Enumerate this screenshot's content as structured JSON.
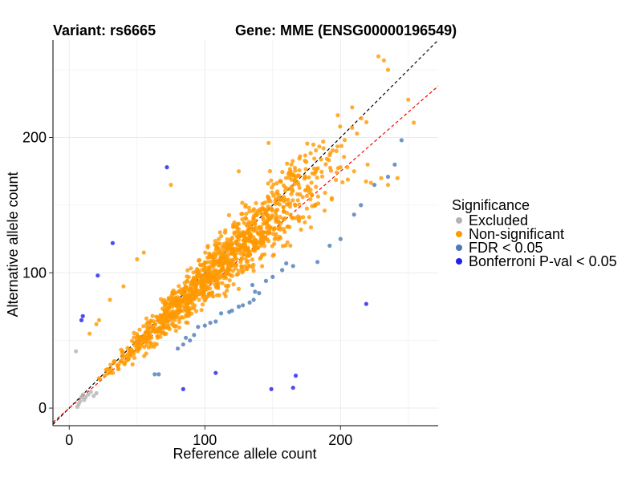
{
  "chart_data": {
    "type": "scatter",
    "title_left": "Variant: rs6665",
    "title_right": "Gene: MME (ENSG00000196549)",
    "xlabel": "Reference allele count",
    "ylabel": "Alternative allele count",
    "xlim": [
      -12,
      272
    ],
    "ylim": [
      -13,
      272
    ],
    "xticks": [
      0,
      100,
      200
    ],
    "yticks": [
      0,
      100,
      200
    ],
    "grid": true,
    "legend": {
      "title": "Significance",
      "position": "right",
      "entries": [
        {
          "label": "Excluded",
          "color": "#b3b3b3"
        },
        {
          "label": "Non-significant",
          "color": "#ff9900"
        },
        {
          "label": "FDR < 0.05",
          "color": "#4a7ab8"
        },
        {
          "label": "Bonferroni P-val < 0.05",
          "color": "#1f1ff0"
        }
      ]
    },
    "reference_lines": [
      {
        "name": "identity",
        "slope": 1.0,
        "intercept": 0,
        "color": "#000000",
        "style": "dashed"
      },
      {
        "name": "fit",
        "slope": 0.875,
        "intercept": 0,
        "color": "#ff0000",
        "style": "dashed"
      }
    ],
    "series": [
      {
        "name": "Excluded",
        "color": "#b3b3b3",
        "points": [
          [
            5,
            42
          ],
          [
            7,
            3
          ],
          [
            6,
            1
          ],
          [
            8,
            5
          ],
          [
            9,
            8
          ],
          [
            10,
            10
          ],
          [
            12,
            8
          ],
          [
            14,
            10
          ],
          [
            18,
            9
          ],
          [
            20,
            11
          ],
          [
            16,
            12
          ],
          [
            11,
            6
          ]
        ]
      },
      {
        "name": "FDR < 0.05",
        "color": "#4a7ab8",
        "points": [
          [
            63,
            25
          ],
          [
            66,
            25
          ],
          [
            80,
            44
          ],
          [
            84,
            47
          ],
          [
            86,
            52
          ],
          [
            89,
            50
          ],
          [
            92,
            54
          ],
          [
            95,
            60
          ],
          [
            100,
            61
          ],
          [
            104,
            63
          ],
          [
            108,
            64
          ],
          [
            112,
            70
          ],
          [
            118,
            71
          ],
          [
            120,
            72
          ],
          [
            125,
            75
          ],
          [
            128,
            76
          ],
          [
            133,
            78
          ],
          [
            136,
            80
          ],
          [
            140,
            85
          ],
          [
            137,
            86
          ],
          [
            135,
            91
          ],
          [
            145,
            94
          ],
          [
            150,
            97
          ],
          [
            157,
            102
          ],
          [
            160,
            107
          ],
          [
            165,
            105
          ],
          [
            183,
            108
          ],
          [
            192,
            120
          ],
          [
            200,
            125
          ],
          [
            210,
            143
          ],
          [
            215,
            150
          ],
          [
            225,
            165
          ],
          [
            235,
            171
          ],
          [
            240,
            180
          ],
          [
            245,
            198
          ]
        ]
      },
      {
        "name": "Bonferroni P-val < 0.05",
        "color": "#1f1ff0",
        "points": [
          [
            72,
            178
          ],
          [
            32,
            122
          ],
          [
            21,
            98
          ],
          [
            10,
            68
          ],
          [
            9,
            65
          ],
          [
            219,
            77
          ],
          [
            108,
            26
          ],
          [
            84,
            14
          ],
          [
            149,
            14
          ],
          [
            165,
            15
          ],
          [
            167,
            24
          ]
        ]
      },
      {
        "name": "Non-significant",
        "color": "#ff9900",
        "generated": {
          "count": 1200,
          "x_range": [
            12,
            235
          ],
          "ratio_range": [
            0.72,
            1.22
          ],
          "seed": 6665
        },
        "points": [
          [
            228,
            260
          ],
          [
            232,
            257
          ],
          [
            235,
            250
          ],
          [
            250,
            228
          ],
          [
            254,
            211
          ],
          [
            230,
            170
          ],
          [
            200,
            178
          ],
          [
            205,
            178
          ],
          [
            197,
            190
          ],
          [
            192,
            187
          ],
          [
            147,
            196
          ],
          [
            125,
            175
          ],
          [
            75,
            165
          ],
          [
            50,
            110
          ],
          [
            55,
            115
          ],
          [
            40,
            90
          ],
          [
            20,
            62
          ],
          [
            22,
            65
          ],
          [
            15,
            55
          ],
          [
            30,
            80
          ],
          [
            242,
            170
          ],
          [
            235,
            165
          ],
          [
            220,
            180
          ],
          [
            210,
            175
          ]
        ]
      }
    ]
  }
}
